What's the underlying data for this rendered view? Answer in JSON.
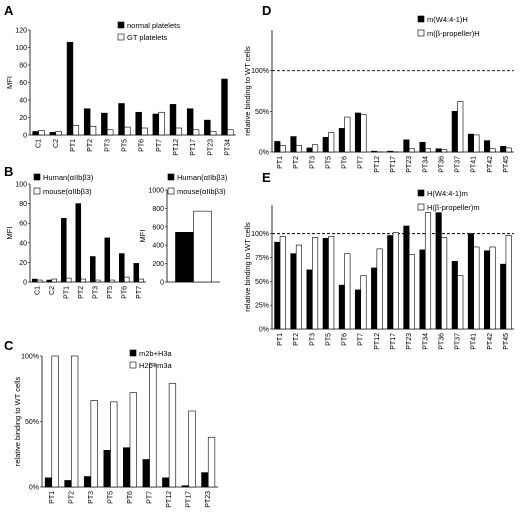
{
  "chart_data": [
    {
      "id": "A",
      "type": "bar",
      "panel_letter": "A",
      "ylabel": "MFI",
      "ylim": [
        0,
        120
      ],
      "yticks": [
        "0",
        "20",
        "40",
        "60",
        "80",
        "100",
        "120"
      ],
      "categories": [
        "C1",
        "C2",
        "PT1",
        "PT2",
        "PT3",
        "PT5",
        "PT6",
        "PT7",
        "PT12",
        "PT17",
        "PT23",
        "PT34"
      ],
      "series": [
        {
          "name": "normal platelets",
          "color": "#000000",
          "values": [
            4,
            3,
            106,
            30,
            25,
            36,
            26,
            24,
            35,
            30,
            17,
            64
          ]
        },
        {
          "name": "GT platelets",
          "color": "#ffffff",
          "values": [
            5,
            4,
            11,
            10,
            6,
            9,
            8,
            26,
            8,
            6,
            4,
            6
          ]
        }
      ],
      "legend_position": "top-right"
    },
    {
      "id": "B1",
      "type": "bar",
      "panel_letter": "B",
      "ylabel": "MFI",
      "ylim": [
        0,
        100
      ],
      "yticks": [
        "0",
        "20",
        "40",
        "60",
        "80",
        "100"
      ],
      "categories": [
        "C1",
        "C2",
        "PT1",
        "PT2",
        "PT3",
        "PT5",
        "PT6",
        "PT7"
      ],
      "series": [
        {
          "name": "Human(αIIbβ3)",
          "color": "#000000",
          "values": [
            3,
            2,
            65,
            80,
            26,
            45,
            29,
            19
          ]
        },
        {
          "name": "mouse(αIIbβ3)",
          "color": "#ffffff",
          "values": [
            2,
            3,
            4,
            3,
            2,
            2,
            5,
            3
          ]
        }
      ],
      "legend_position": "top-right"
    },
    {
      "id": "B2",
      "type": "bar",
      "ylabel": "MFI",
      "ylim": [
        0,
        1000
      ],
      "yticks": [
        "0",
        "200",
        "400",
        "600",
        "800",
        "1000"
      ],
      "categories": [
        ""
      ],
      "series": [
        {
          "name": "Human(αIIbβ3)",
          "color": "#000000",
          "values": [
            540
          ]
        },
        {
          "name": "mouse(αIIbβ3)",
          "color": "#ffffff",
          "values": [
            770
          ]
        }
      ],
      "legend_position": "top"
    },
    {
      "id": "C",
      "type": "bar",
      "panel_letter": "C",
      "ylabel": "relative binding to WT cells",
      "ylim": [
        0,
        100
      ],
      "yticks": [
        "0%",
        "50%",
        "100%"
      ],
      "categories": [
        "PT1",
        "PT2",
        "PT3",
        "PT5",
        "PT6",
        "PT7",
        "PT12",
        "PT17",
        "PT23"
      ],
      "series": [
        {
          "name": "m2b+H3a",
          "color": "#000000",
          "values": [
            7,
            5,
            8,
            28,
            30,
            21,
            7,
            1,
            11
          ]
        },
        {
          "name": "H2b+m3a",
          "color": "#ffffff",
          "values": [
            100,
            100,
            66,
            65,
            72,
            94,
            79,
            58,
            38
          ]
        }
      ],
      "legend_position": "top-right"
    },
    {
      "id": "D",
      "type": "bar",
      "panel_letter": "D",
      "ylabel": "relative binding to WT cells",
      "ylim": [
        0,
        150
      ],
      "yticks": [
        "0%",
        "50%",
        "100%"
      ],
      "reference_line": 100,
      "categories": [
        "PT1",
        "PT2",
        "PT3",
        "PT5",
        "PT6",
        "PT7",
        "PT12",
        "PT17",
        "PT23",
        "PT34",
        "PT36",
        "PT37",
        "PT41",
        "PT42",
        "PT45"
      ],
      "series": [
        {
          "name": "m(W4:4-1)H",
          "color": "#000000",
          "values": [
            13,
            19,
            5,
            18,
            29,
            48,
            1,
            1,
            15,
            12,
            4,
            50,
            22,
            14,
            7
          ]
        },
        {
          "name": "m(β-propeller)H",
          "color": "#ffffff",
          "values": [
            8,
            8,
            9,
            24,
            43,
            46,
            0,
            0,
            4,
            4,
            3,
            62,
            21,
            4,
            5
          ]
        }
      ],
      "legend_position": "top-right"
    },
    {
      "id": "E",
      "type": "bar",
      "panel_letter": "E",
      "ylabel": "relative binding to WT cells",
      "ylim": [
        0,
        130
      ],
      "yticks": [
        "0%",
        "25%",
        "50%",
        "75%",
        "100%"
      ],
      "reference_line": 100,
      "categories": [
        "PT1",
        "PT2",
        "PT3",
        "PT5",
        "PT6",
        "PT7",
        "PT12",
        "PT17",
        "PT23",
        "PT34",
        "PT36",
        "PT37",
        "PT41",
        "PT42",
        "PT45"
      ],
      "series": [
        {
          "name": "H(W4:4-1)m",
          "color": "#000000",
          "values": [
            91,
            79,
            62,
            95,
            46,
            41,
            64,
            98,
            108,
            83,
            122,
            71,
            100,
            82,
            68
          ]
        },
        {
          "name": "H(β-propeller)m",
          "color": "#ffffff",
          "values": [
            97,
            88,
            96,
            97,
            79,
            56,
            84,
            101,
            78,
            122,
            96,
            56,
            86,
            86,
            98
          ]
        }
      ],
      "legend_position": "top-left"
    }
  ]
}
